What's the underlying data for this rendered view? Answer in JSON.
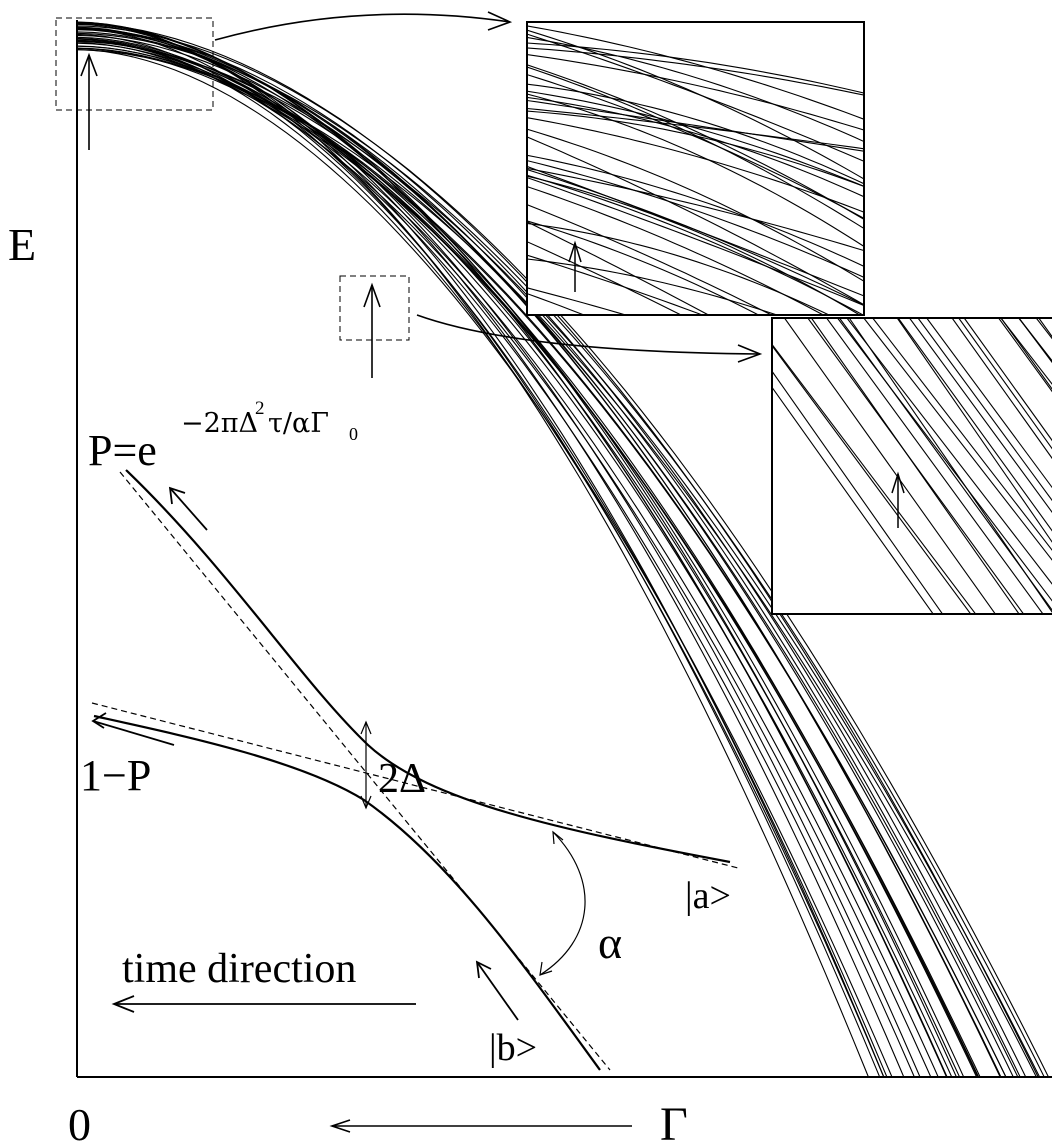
{
  "labels": {
    "energy_axis": "E",
    "origin": "0",
    "gamma_axis": "Γ",
    "probability_prefix": "P=e",
    "probability_exponent": "−2πΔ",
    "exponent_square": "2",
    "exponent_tail": "τ/αΓ",
    "exponent_sub": "0",
    "complement": "1−P",
    "gap": "2Δ",
    "state_a": "|a>",
    "state_b": "|b>",
    "angle": "α",
    "time": "time direction"
  },
  "colors": {
    "ink": "#000000",
    "background": "#ffffff"
  }
}
